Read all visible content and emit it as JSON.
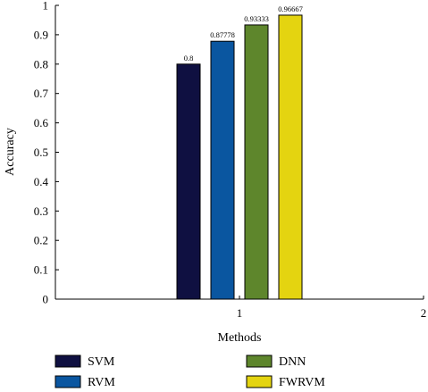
{
  "chart_data": {
    "type": "bar",
    "xlabel": "Methods",
    "ylabel": "Accuracy",
    "xlim": [
      0,
      2
    ],
    "ylim": [
      0,
      1
    ],
    "x_ticks": [
      "1",
      "2"
    ],
    "y_ticks": [
      "0",
      "0.1",
      "0.2",
      "0.3",
      "0.4",
      "0.5",
      "0.6",
      "0.7",
      "0.8",
      "0.9",
      "1"
    ],
    "grid": false,
    "legend_position": "bottom",
    "group_x": 1,
    "series": [
      {
        "name": "SVM",
        "value": 0.8,
        "label": "0.8",
        "color": "#0f1041"
      },
      {
        "name": "RVM",
        "value": 0.87778,
        "label": "0.87778",
        "color": "#0a56a0"
      },
      {
        "name": "DNN",
        "value": 0.93333,
        "label": "0.93333",
        "color": "#5e862c"
      },
      {
        "name": "FWRVM",
        "value": 0.96667,
        "label": "0.96667",
        "color": "#e4d410"
      }
    ]
  }
}
